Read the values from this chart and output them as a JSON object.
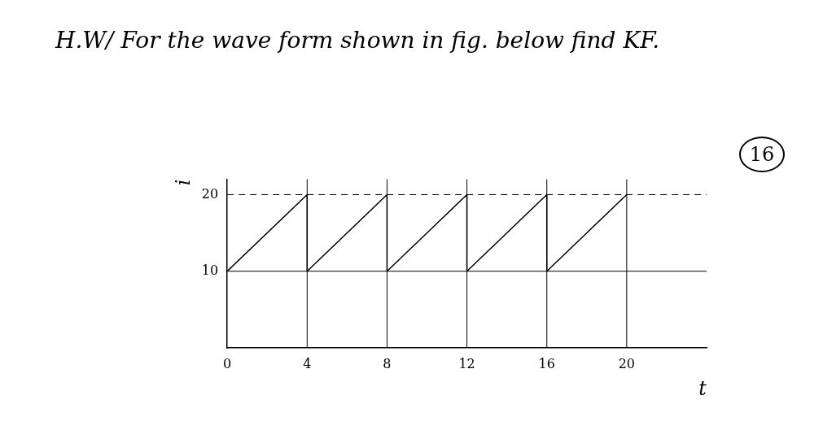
{
  "chart_data": {
    "type": "line",
    "title": "H.W/ For the wave form shown in fig. below find KF.",
    "annotations": [
      "16"
    ],
    "xlabel": "t",
    "ylabel": "i",
    "series": [
      {
        "color": "#000000",
        "x": [
          0,
          4,
          4,
          8,
          8,
          12,
          12,
          16,
          16,
          20
        ],
        "values": [
          10,
          20,
          10,
          20,
          10,
          20,
          10,
          20,
          10,
          20
        ]
      }
    ],
    "xlim": [
      0,
      24
    ],
    "xticks": [
      0,
      4,
      8,
      12,
      16,
      20
    ],
    "ylim": [
      0,
      22
    ],
    "yticks": [
      10,
      20
    ],
    "grid": false,
    "legend": false,
    "marker": "none",
    "line_style": "solid",
    "ref_lines": [
      {
        "axis": "y",
        "value": 10,
        "color": "#000000",
        "line_style": "solid"
      },
      {
        "axis": "y",
        "value": 20,
        "color": "#000000",
        "line_style": "dashed"
      },
      {
        "axis": "x",
        "value": 4,
        "color": "#000000",
        "line_style": "solid"
      },
      {
        "axis": "x",
        "value": 8,
        "color": "#000000",
        "line_style": "solid"
      },
      {
        "axis": "x",
        "value": 12,
        "color": "#000000",
        "line_style": "solid"
      },
      {
        "axis": "x",
        "value": 16,
        "color": "#000000",
        "line_style": "solid"
      },
      {
        "axis": "x",
        "value": 20,
        "color": "#000000",
        "line_style": "solid"
      }
    ]
  }
}
